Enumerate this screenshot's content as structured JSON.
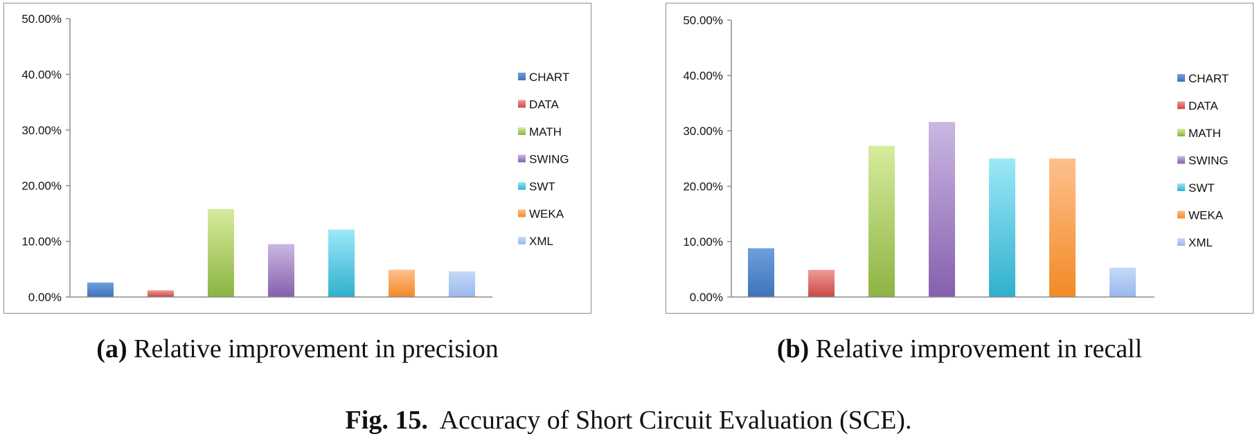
{
  "colors": {
    "CHART": [
      "#6f9fdc",
      "#3d73bc"
    ],
    "DATA": [
      "#f29a97",
      "#c94845"
    ],
    "MATH": [
      "#d6ec9c",
      "#8cb443"
    ],
    "SWING": [
      "#cbb7e3",
      "#8560ad"
    ],
    "SWT": [
      "#9ce8f8",
      "#2fb0cd"
    ],
    "WEKA": [
      "#fec08e",
      "#f28a25"
    ],
    "XML": [
      "#c6d9f8",
      "#98b8ed"
    ]
  },
  "chart_data": [
    {
      "type": "bar",
      "categories": [
        "CHART",
        "DATA",
        "MATH",
        "SWING",
        "SWT",
        "WEKA",
        "XML"
      ],
      "values": [
        2.6,
        1.2,
        15.8,
        9.5,
        12.1,
        4.9,
        4.6
      ],
      "ylim": [
        0,
        50
      ],
      "y_ticks": [
        "0.00%",
        "10.00%",
        "20.00%",
        "30.00%",
        "40.00%",
        "50.00%"
      ],
      "legend": [
        "CHART",
        "DATA",
        "MATH",
        "SWING",
        "SWT",
        "WEKA",
        "XML"
      ],
      "legend_position": "right",
      "grid": false
    },
    {
      "type": "bar",
      "categories": [
        "CHART",
        "DATA",
        "MATH",
        "SWING",
        "SWT",
        "WEKA",
        "XML"
      ],
      "values": [
        8.8,
        4.9,
        27.3,
        31.6,
        25.0,
        25.0,
        5.3
      ],
      "ylim": [
        0,
        50
      ],
      "y_ticks": [
        "0.00%",
        "10.00%",
        "20.00%",
        "30.00%",
        "40.00%",
        "50.00%"
      ],
      "legend": [
        "CHART",
        "DATA",
        "MATH",
        "SWING",
        "SWT",
        "WEKA",
        "XML"
      ],
      "legend_position": "right",
      "grid": false
    }
  ],
  "captions": {
    "a_label": "(a)",
    "a_text": "Relative improvement in precision",
    "b_label": "(b)",
    "b_text": "Relative improvement in recall",
    "fig_label": "Fig. 15.",
    "fig_text": "Accuracy of Short Circuit Evaluation (SCE)."
  }
}
